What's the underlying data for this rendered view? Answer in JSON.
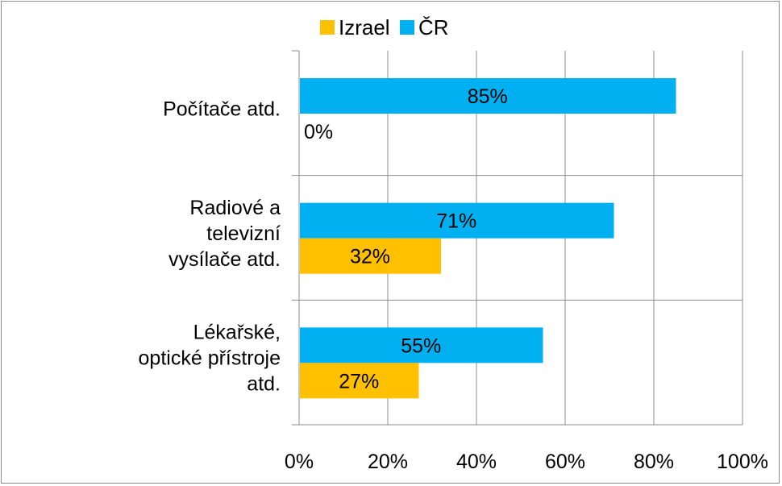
{
  "chart_data": {
    "type": "bar",
    "orientation": "horizontal",
    "title": "",
    "xlabel": "",
    "ylabel": "",
    "xlim": [
      0,
      100
    ],
    "x_ticks": [
      "0%",
      "20%",
      "40%",
      "60%",
      "80%",
      "100%"
    ],
    "grid": true,
    "legend_position": "top",
    "categories": [
      [
        "Počítače atd."
      ],
      [
        "Radiové a",
        "televizní",
        "vysílače atd."
      ],
      [
        "Lékařské,",
        "optické přístroje",
        "atd."
      ]
    ],
    "series": [
      {
        "name": "Izrael",
        "color": "#FFC000",
        "values": [
          0,
          32,
          27
        ],
        "labels": [
          "0%",
          "32%",
          "27%"
        ]
      },
      {
        "name": "ČR",
        "color": "#00B0F0",
        "values": [
          85,
          71,
          55
        ],
        "labels": [
          "85%",
          "71%",
          "55%"
        ]
      }
    ]
  }
}
